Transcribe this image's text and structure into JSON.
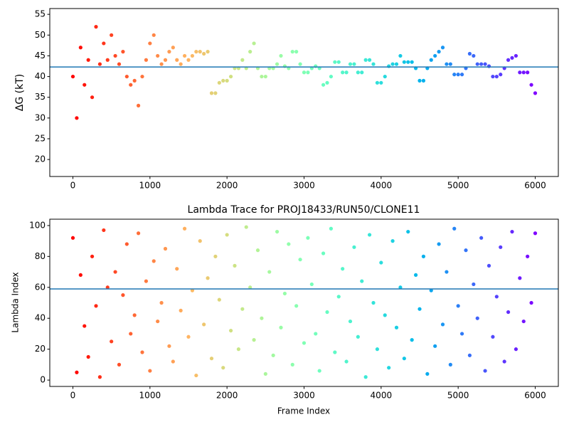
{
  "chart_data": [
    {
      "type": "scatter",
      "ylabel": "ΔG (kT)",
      "colormap": "rainbow_r",
      "clim": [
        0,
        6000
      ],
      "hline": 42.3,
      "hline_color": "#1f77b4",
      "xlim": [
        -300,
        6300
      ],
      "xticks": [
        0,
        1000,
        2000,
        3000,
        4000,
        5000,
        6000
      ],
      "ylim": [
        15.9,
        56.4
      ],
      "yticks": [
        20,
        25,
        30,
        35,
        40,
        45,
        50,
        55
      ],
      "x": [
        0,
        50,
        100,
        150,
        200,
        250,
        300,
        350,
        400,
        450,
        500,
        550,
        600,
        650,
        700,
        750,
        800,
        850,
        900,
        950,
        1000,
        1050,
        1100,
        1150,
        1200,
        1250,
        1300,
        1350,
        1400,
        1450,
        1500,
        1550,
        1600,
        1650,
        1700,
        1750,
        1800,
        1850,
        1900,
        1950,
        2000,
        2050,
        2100,
        2150,
        2200,
        2250,
        2300,
        2350,
        2400,
        2450,
        2500,
        2550,
        2600,
        2650,
        2700,
        2750,
        2800,
        2850,
        2900,
        2950,
        3000,
        3050,
        3100,
        3150,
        3200,
        3250,
        3300,
        3350,
        3400,
        3450,
        3500,
        3550,
        3600,
        3650,
        3700,
        3750,
        3800,
        3850,
        3900,
        3950,
        4000,
        4050,
        4100,
        4150,
        4200,
        4250,
        4300,
        4350,
        4400,
        4450,
        4500,
        4550,
        4600,
        4650,
        4700,
        4750,
        4800,
        4850,
        4900,
        4950,
        5000,
        5050,
        5100,
        5150,
        5200,
        5250,
        5300,
        5350,
        5400,
        5450,
        5500,
        5550,
        5600,
        5650,
        5700,
        5750,
        5800,
        5850,
        5900,
        5950,
        6000
      ],
      "values": [
        40,
        30,
        47,
        38,
        44,
        35,
        52,
        43,
        48,
        44,
        50,
        45,
        43,
        46,
        40,
        38,
        39,
        33,
        40,
        44,
        48,
        50,
        45,
        43,
        44,
        46,
        47,
        44,
        43,
        45,
        44,
        45,
        46,
        46,
        45.5,
        46,
        36,
        36,
        38.5,
        39,
        39,
        40,
        42,
        42,
        44,
        42,
        46,
        48,
        42,
        40,
        40,
        42,
        42,
        43,
        45,
        42.5,
        42,
        46,
        46,
        43,
        41,
        41,
        42,
        42.5,
        42,
        38,
        38.5,
        40,
        43.5,
        43.5,
        41,
        41,
        43,
        43,
        41,
        41,
        44,
        44,
        43,
        38.5,
        38.5,
        40,
        42.5,
        43,
        43,
        45,
        43.5,
        43.5,
        43.5,
        42,
        39,
        39,
        42,
        44,
        45,
        46,
        47,
        43,
        43,
        40.5,
        40.5,
        40.5,
        42,
        45.5,
        45,
        43,
        43,
        43,
        42.5,
        40,
        40,
        40.5,
        42,
        44,
        44.5,
        45,
        41,
        41,
        41,
        38,
        36
      ]
    },
    {
      "type": "scatter",
      "title": "Lambda Trace for PROJ18433/RUN50/CLONE11",
      "xlabel": "Frame Index",
      "ylabel": "Lambda Index",
      "colormap": "rainbow_r",
      "clim": [
        0,
        6000
      ],
      "hline": 59,
      "hline_color": "#1f77b4",
      "xlim": [
        -300,
        6300
      ],
      "xticks": [
        0,
        1000,
        2000,
        3000,
        4000,
        5000,
        6000
      ],
      "ylim": [
        -4.1,
        104.1
      ],
      "yticks": [
        0,
        20,
        40,
        60,
        80,
        100
      ],
      "x": [
        0,
        50,
        100,
        150,
        200,
        250,
        300,
        350,
        400,
        450,
        500,
        550,
        600,
        650,
        700,
        750,
        800,
        850,
        900,
        950,
        1000,
        1050,
        1100,
        1150,
        1200,
        1250,
        1300,
        1350,
        1400,
        1450,
        1500,
        1550,
        1600,
        1650,
        1700,
        1750,
        1800,
        1850,
        1900,
        1950,
        2000,
        2050,
        2100,
        2150,
        2200,
        2250,
        2300,
        2350,
        2400,
        2450,
        2500,
        2550,
        2600,
        2650,
        2700,
        2750,
        2800,
        2850,
        2900,
        2950,
        3000,
        3050,
        3100,
        3150,
        3200,
        3250,
        3300,
        3350,
        3400,
        3450,
        3500,
        3550,
        3600,
        3650,
        3700,
        3750,
        3800,
        3850,
        3900,
        3950,
        4000,
        4050,
        4100,
        4150,
        4200,
        4250,
        4300,
        4350,
        4400,
        4450,
        4500,
        4550,
        4600,
        4650,
        4700,
        4750,
        4800,
        4850,
        4900,
        4950,
        5000,
        5050,
        5100,
        5150,
        5200,
        5250,
        5300,
        5350,
        5400,
        5450,
        5500,
        5550,
        5600,
        5650,
        5700,
        5750,
        5800,
        5850,
        5900,
        5950,
        6000
      ],
      "values": [
        92,
        5,
        68,
        35,
        15,
        80,
        48,
        2,
        97,
        60,
        25,
        70,
        10,
        55,
        88,
        30,
        42,
        95,
        18,
        64,
        6,
        77,
        38,
        50,
        85,
        22,
        12,
        72,
        45,
        98,
        28,
        58,
        3,
        90,
        36,
        66,
        14,
        80,
        52,
        8,
        94,
        32,
        74,
        20,
        46,
        99,
        60,
        26,
        84,
        40,
        4,
        70,
        16,
        96,
        34,
        56,
        88,
        10,
        48,
        78,
        24,
        92,
        62,
        30,
        6,
        82,
        44,
        98,
        18,
        54,
        72,
        12,
        38,
        86,
        28,
        64,
        2,
        94,
        50,
        20,
        76,
        42,
        8,
        90,
        34,
        60,
        14,
        96,
        26,
        68,
        46,
        80,
        4,
        58,
        22,
        88,
        36,
        70,
        10,
        98,
        48,
        30,
        84,
        16,
        62,
        40,
        92,
        6,
        74,
        28,
        54,
        86,
        12,
        44,
        96,
        20,
        66,
        38,
        80,
        50,
        95
      ]
    }
  ]
}
